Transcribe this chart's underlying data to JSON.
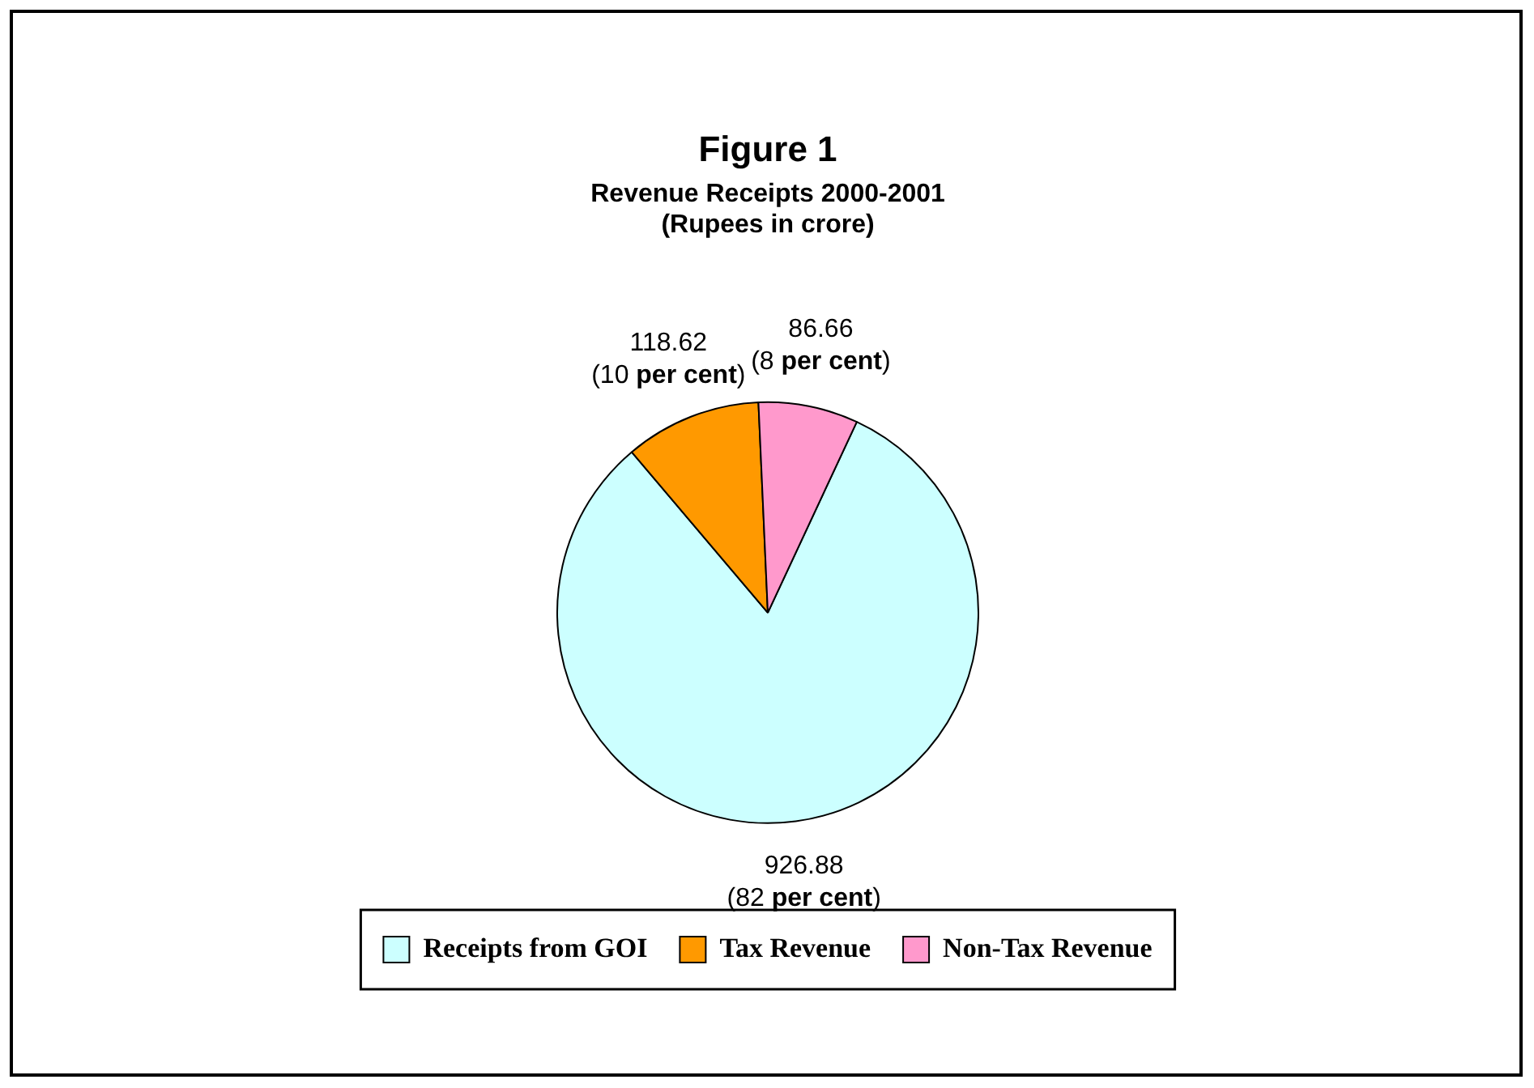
{
  "chart_data": {
    "type": "pie",
    "title": "Figure 1",
    "subtitle": "Revenue Receipts 2000-2001\n(Rupees in crore)",
    "categories": [
      "Receipts from GOI",
      "Tax Revenue",
      "Non-Tax Revenue"
    ],
    "values": [
      926.88,
      118.62,
      86.66
    ],
    "colors": [
      "#ccffff",
      "#ff9900",
      "#ff99cc"
    ],
    "value_labels": [
      "926.88\n(82 per cent)",
      "118.62\n(10 per cent)",
      "86.66\n(8 per cent)"
    ],
    "legend": "bottom"
  }
}
